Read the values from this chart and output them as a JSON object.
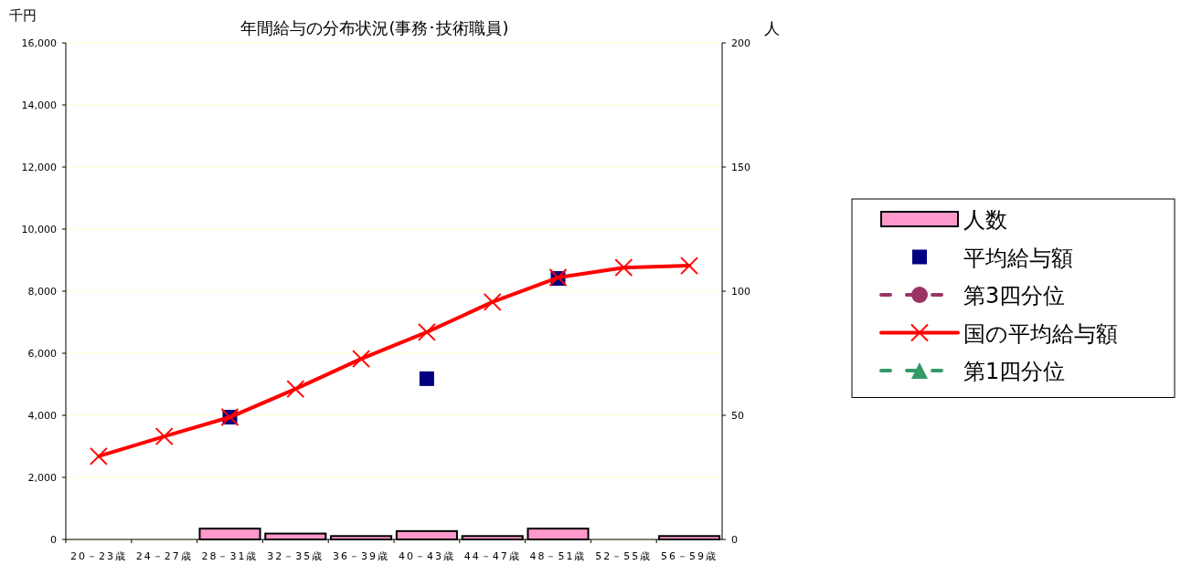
{
  "chart_data": {
    "type": "line",
    "title": "年間給与の分布状況(事務･技術職員)",
    "ylabel": "千円",
    "y2label": "人",
    "categories": [
      "20－23歳",
      "24－27歳",
      "28－31歳",
      "32－35歳",
      "36－39歳",
      "40－43歳",
      "44－47歳",
      "48－51歳",
      "52－55歳",
      "56－59歳"
    ],
    "series": [
      {
        "name": "人数",
        "type": "bar",
        "axis": "y2",
        "color": "#ff99cc",
        "values": [
          0,
          0,
          4,
          2,
          1,
          3,
          1,
          4,
          0,
          1
        ]
      },
      {
        "name": "平均給与額",
        "type": "scatter",
        "marker": "square",
        "color": "#000080",
        "values": [
          null,
          null,
          3940,
          null,
          null,
          5180,
          null,
          8410,
          null,
          null
        ]
      },
      {
        "name": "第3四分位",
        "line_style": "dashed",
        "marker": "circle",
        "color": "#993366",
        "values": [
          null,
          null,
          null,
          null,
          null,
          null,
          null,
          null,
          null,
          null
        ]
      },
      {
        "name": "国の平均給与額",
        "line_style": "solid",
        "marker": "cross",
        "color": "#ff0000",
        "values": [
          2680,
          3320,
          3940,
          4850,
          5820,
          6680,
          7650,
          8440,
          8760,
          8820
        ]
      },
      {
        "name": "第1四分位",
        "line_style": "dashed",
        "marker": "triangle",
        "color": "#339966",
        "values": [
          null,
          null,
          null,
          null,
          null,
          null,
          null,
          null,
          null,
          null
        ]
      }
    ],
    "ylim": [
      0,
      16000
    ],
    "yticks": [
      {
        "value": 0,
        "label": "0"
      },
      {
        "value": 2000,
        "label": "2,000"
      },
      {
        "value": 4000,
        "label": "4,000"
      },
      {
        "value": 6000,
        "label": "6,000"
      },
      {
        "value": 8000,
        "label": "8,000"
      },
      {
        "value": 10000,
        "label": "10,000"
      },
      {
        "value": 12000,
        "label": "12,000"
      },
      {
        "value": 14000,
        "label": "14,000"
      },
      {
        "value": 16000,
        "label": "16,000"
      }
    ],
    "y2lim": [
      0,
      200
    ],
    "y2ticks": [
      0,
      50,
      100,
      150,
      200
    ],
    "grid": "y",
    "legend": "right"
  }
}
